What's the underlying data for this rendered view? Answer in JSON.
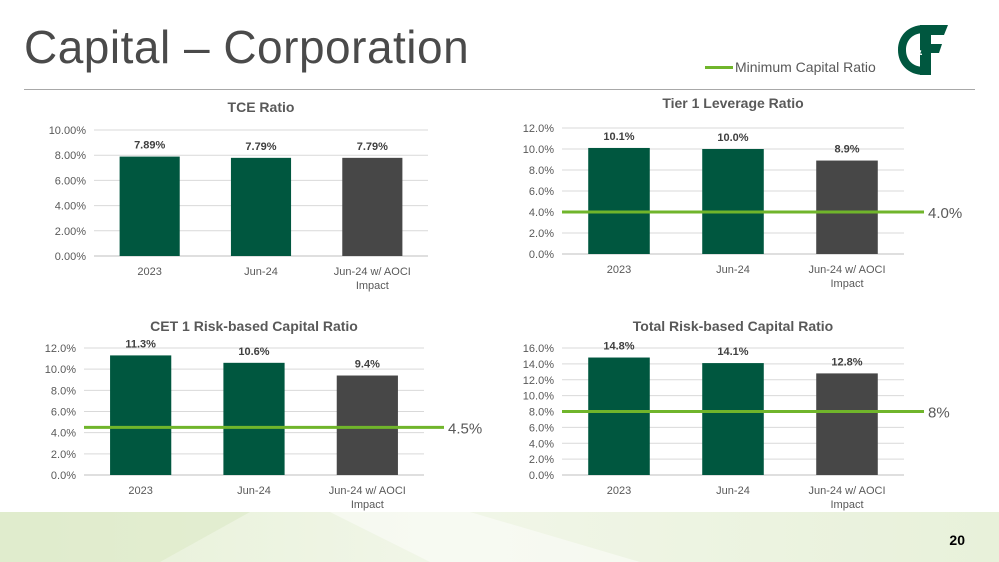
{
  "page": {
    "title": "Capital – Corporation",
    "page_number": "20",
    "legend_label": "Minimum Capital Ratio",
    "logo_alt": "C&F"
  },
  "colors": {
    "dark_green": "#00573f",
    "gray": "#474747",
    "line_green": "#70b52b",
    "grid": "#d9d9d9"
  },
  "chart_data": [
    {
      "type": "bar",
      "title": "TCE Ratio",
      "categories": [
        "2023",
        "Jun-24",
        "Jun-24 w/ AOCI Impact"
      ],
      "values": [
        7.89,
        7.79,
        7.79
      ],
      "value_labels": [
        "7.89%",
        "7.79%",
        "7.79%"
      ],
      "ylim": [
        0,
        10
      ],
      "yticks": [
        0,
        2,
        4,
        6,
        8,
        10
      ],
      "ytick_labels": [
        "0.00%",
        "2.00%",
        "4.00%",
        "6.00%",
        "8.00%",
        "10.00%"
      ],
      "bar_colors": [
        "dark_green",
        "dark_green",
        "gray"
      ],
      "min_ratio": null,
      "min_ratio_label": null
    },
    {
      "type": "bar",
      "title": "Tier 1 Leverage Ratio",
      "categories": [
        "2023",
        "Jun-24",
        "Jun-24 w/ AOCI Impact"
      ],
      "values": [
        10.1,
        10.0,
        8.9
      ],
      "value_labels": [
        "10.1%",
        "10.0%",
        "8.9%"
      ],
      "ylim": [
        0,
        12
      ],
      "yticks": [
        0,
        2,
        4,
        6,
        8,
        10,
        12
      ],
      "ytick_labels": [
        "0.0%",
        "2.0%",
        "4.0%",
        "6.0%",
        "8.0%",
        "10.0%",
        "12.0%"
      ],
      "bar_colors": [
        "dark_green",
        "dark_green",
        "gray"
      ],
      "min_ratio": 4.0,
      "min_ratio_label": "4.0%"
    },
    {
      "type": "bar",
      "title": "CET 1 Risk-based Capital Ratio",
      "categories": [
        "2023",
        "Jun-24",
        "Jun-24 w/ AOCI Impact"
      ],
      "values": [
        11.3,
        10.6,
        9.4
      ],
      "value_labels": [
        "11.3%",
        "10.6%",
        "9.4%"
      ],
      "ylim": [
        0,
        12
      ],
      "yticks": [
        0,
        2,
        4,
        6,
        8,
        10,
        12
      ],
      "ytick_labels": [
        "0.0%",
        "2.0%",
        "4.0%",
        "6.0%",
        "8.0%",
        "10.0%",
        "12.0%"
      ],
      "bar_colors": [
        "dark_green",
        "dark_green",
        "gray"
      ],
      "min_ratio": 4.5,
      "min_ratio_label": "4.5%"
    },
    {
      "type": "bar",
      "title": "Total Risk-based Capital Ratio",
      "categories": [
        "2023",
        "Jun-24",
        "Jun-24 w/ AOCI Impact"
      ],
      "values": [
        14.8,
        14.1,
        12.8
      ],
      "value_labels": [
        "14.8%",
        "14.1%",
        "12.8%"
      ],
      "ylim": [
        0,
        16
      ],
      "yticks": [
        0,
        2,
        4,
        6,
        8,
        10,
        12,
        14,
        16
      ],
      "ytick_labels": [
        "0.0%",
        "2.0%",
        "4.0%",
        "6.0%",
        "8.0%",
        "10.0%",
        "12.0%",
        "14.0%",
        "16.0%"
      ],
      "bar_colors": [
        "dark_green",
        "dark_green",
        "gray"
      ],
      "min_ratio": 8,
      "min_ratio_label": "8%"
    }
  ]
}
